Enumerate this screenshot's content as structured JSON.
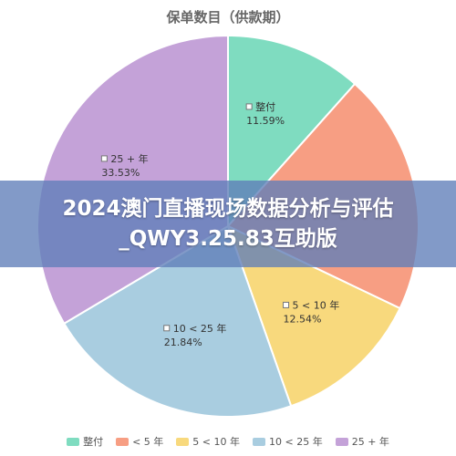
{
  "chart_data": {
    "type": "pie",
    "title": "保单数目（供款期）",
    "series": [
      {
        "name": "整付",
        "value": 11.59,
        "label": "11.59%",
        "color": "#7fdcc0"
      },
      {
        "name": "< 5 年",
        "value": 20.5,
        "label": "",
        "color": "#f79e83"
      },
      {
        "name": "5 < 10 年",
        "value": 12.54,
        "label": "12.54%",
        "color": "#f8d97d"
      },
      {
        "name": "10 < 25 年",
        "value": 21.84,
        "label": "21.84%",
        "color": "#a9cde0"
      },
      {
        "name": "25 + 年",
        "value": 33.53,
        "label": "33.53%",
        "color": "#c4a2d8"
      }
    ],
    "legend_position": "bottom"
  },
  "banner": {
    "text": "2024澳门直播现场数据分析与评估_QWY3.25.83互助版"
  }
}
